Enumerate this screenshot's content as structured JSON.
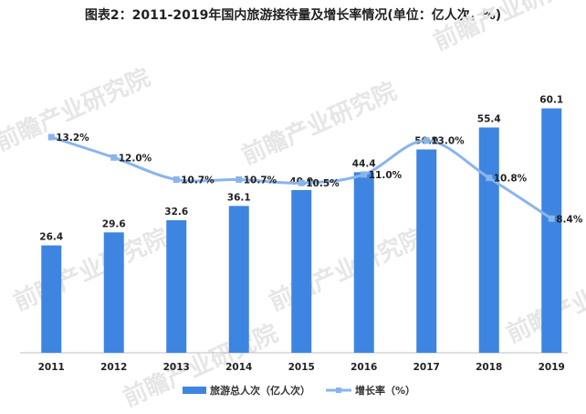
{
  "chart_data": {
    "type": "bar+line",
    "title": "图表2：2011-2019年国内旅游接待量及增长率情况(单位：亿人次，%)",
    "categories": [
      "2011",
      "2012",
      "2013",
      "2014",
      "2015",
      "2016",
      "2017",
      "2018",
      "2019"
    ],
    "series": [
      {
        "name": "旅游总人次（亿人次）",
        "type": "bar",
        "values": [
          26.4,
          29.6,
          32.6,
          36.1,
          40.0,
          44.4,
          50.0,
          55.4,
          60.1
        ],
        "labels": [
          "26.4",
          "29.6",
          "32.6",
          "36.1",
          "40.0",
          "44.4",
          "50.0",
          "55.4",
          "60.1"
        ],
        "color": "#3d85e0"
      },
      {
        "name": "增长率（%）",
        "type": "line",
        "values": [
          13.2,
          12.0,
          10.7,
          10.7,
          10.5,
          11.0,
          13.0,
          10.8,
          8.4
        ],
        "labels": [
          "13.2%",
          "12.0%",
          "10.7%",
          "10.7%",
          "10.5%",
          "11.0%",
          "13.0%",
          "10.8%",
          "8.4%"
        ],
        "color": "#8ab4ec"
      }
    ],
    "legend_position": "bottom",
    "grid": false
  },
  "watermark": "前瞻产业研究院"
}
